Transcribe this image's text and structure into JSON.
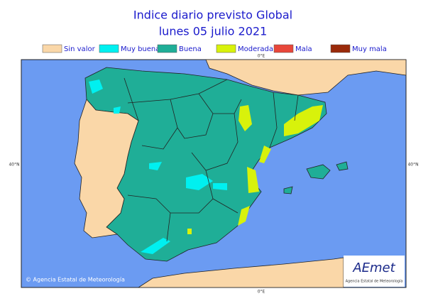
{
  "header": {
    "title": "Indice diario previsto Global",
    "subtitle": "lunes 05 julio 2021"
  },
  "legend": [
    {
      "label": "Sin valor",
      "color": "#fad7a8"
    },
    {
      "label": "Muy buena",
      "color": "#00f0f0"
    },
    {
      "label": "Buena",
      "color": "#1fae97"
    },
    {
      "label": "Moderada",
      "color": "#d8f20b"
    },
    {
      "label": "Mala",
      "color": "#e8473a"
    },
    {
      "label": "Muy mala",
      "color": "#9a2a0a"
    }
  ],
  "map": {
    "lon_label_top": "0°E",
    "lon_label_bottom": "0°E",
    "lat_label_left": "40°N",
    "lat_label_right": "40°N",
    "copyright": "© Agencia Estatal de Meteorología",
    "logo": {
      "name": "AEmet",
      "subtitle": "Agencia Estatal de Meteorología"
    }
  }
}
